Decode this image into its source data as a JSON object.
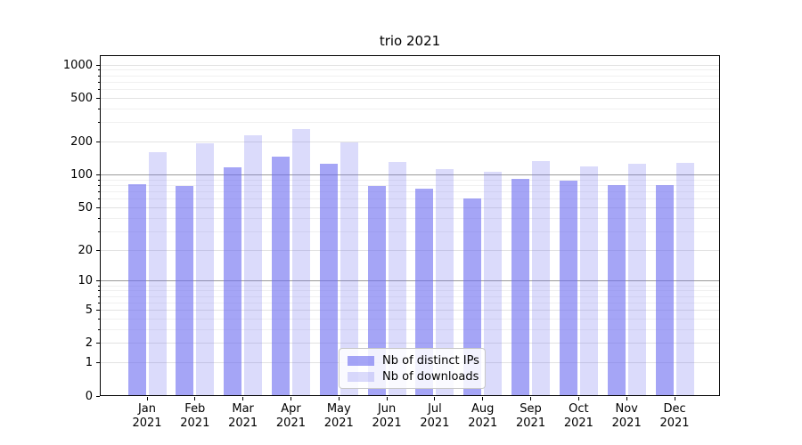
{
  "chart_data": {
    "type": "bar",
    "title": "trio 2021",
    "xlabel": "",
    "ylabel": "",
    "yscale": "log1p",
    "ylim": [
      0,
      1230
    ],
    "grid": true,
    "legend_position": "lower center",
    "y_ticks": [
      0,
      1,
      2,
      5,
      10,
      20,
      50,
      100,
      200,
      500,
      1000
    ],
    "categories": [
      "Jan 2021",
      "Feb 2021",
      "Mar 2021",
      "Apr 2021",
      "May 2021",
      "Jun 2021",
      "Jul 2021",
      "Aug 2021",
      "Sep 2021",
      "Oct 2021",
      "Nov 2021",
      "Dec 2021"
    ],
    "series": [
      {
        "name": "Nb of distinct IPs",
        "values": [
          82,
          80,
          118,
          148,
          127,
          80,
          75,
          61,
          92,
          88,
          81,
          81
        ]
      },
      {
        "name": "Nb of downloads",
        "values": [
          163,
          195,
          230,
          265,
          197,
          131,
          113,
          108,
          133,
          120,
          127,
          128
        ]
      }
    ]
  },
  "colors": {
    "ips": "rgba(110,110,240,0.62)",
    "downloads": "rgba(110,110,240,0.25)",
    "grid_emphasis": "#9a9a9a",
    "grid_labeled": "#e2e2e2",
    "grid_minor": "#f0f0f0",
    "spine": "#000000"
  }
}
